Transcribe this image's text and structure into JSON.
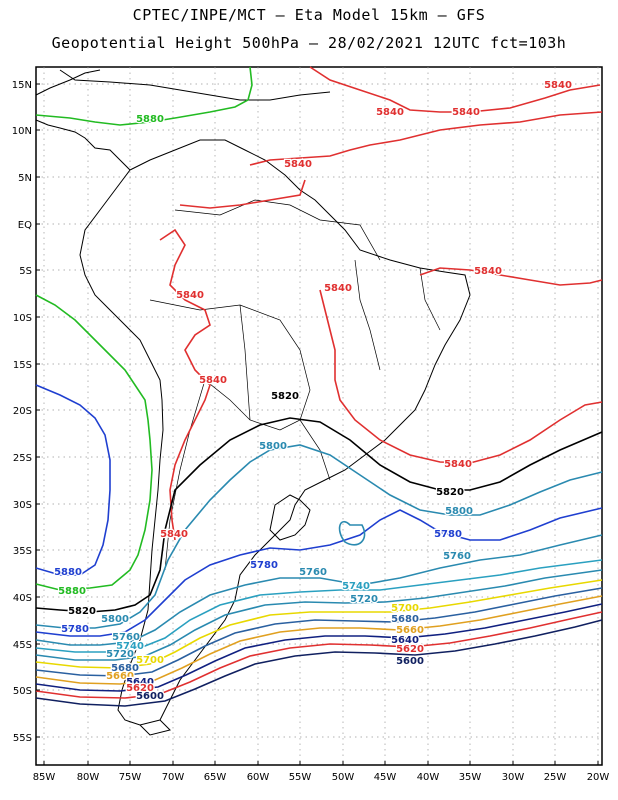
{
  "header": {
    "line1": "CPTEC/INPE/MCT  –  Eta Model 15km  –  GFS",
    "line2": "Geopotential Height 500hPa  –  28/02/2021 12UTC fct=103h"
  },
  "axes": {
    "lat_labels": [
      "15N",
      "10N",
      "5N",
      "EQ",
      "5S",
      "10S",
      "15S",
      "20S",
      "25S",
      "30S",
      "35S",
      "40S",
      "45S",
      "50S",
      "55S"
    ],
    "lon_labels": [
      "85W",
      "80W",
      "75W",
      "70W",
      "65W",
      "60W",
      "55W",
      "50W",
      "45W",
      "40W",
      "35W",
      "30W",
      "25W",
      "20W"
    ]
  },
  "contour_labels": [
    {
      "text": "5880",
      "color": "#22bb22"
    },
    {
      "text": "5840",
      "color": "#e03030"
    },
    {
      "text": "5840",
      "color": "#e03030"
    },
    {
      "text": "5840",
      "color": "#e03030"
    },
    {
      "text": "5840",
      "color": "#e03030"
    },
    {
      "text": "5840",
      "color": "#e03030"
    },
    {
      "text": "5840",
      "color": "#e03030"
    },
    {
      "text": "5840",
      "color": "#e03030"
    },
    {
      "text": "5840",
      "color": "#e03030"
    },
    {
      "text": "5840",
      "color": "#e03030"
    },
    {
      "text": "5840",
      "color": "#e03030"
    },
    {
      "text": "5820",
      "color": "#000000"
    },
    {
      "text": "5820",
      "color": "#000000"
    },
    {
      "text": "5820",
      "color": "#000000"
    },
    {
      "text": "5800",
      "color": "#2a8ab0"
    },
    {
      "text": "5800",
      "color": "#2a8ab0"
    },
    {
      "text": "5800",
      "color": "#2a8ab0"
    },
    {
      "text": "5780",
      "color": "#1f3fd0"
    },
    {
      "text": "5780",
      "color": "#1f3fd0"
    },
    {
      "text": "5780",
      "color": "#1f3fd0"
    },
    {
      "text": "5760",
      "color": "#2a8ab0"
    },
    {
      "text": "5760",
      "color": "#2a8ab0"
    },
    {
      "text": "5760",
      "color": "#2a8ab0"
    },
    {
      "text": "5740",
      "color": "#2aa0c0"
    },
    {
      "text": "5740",
      "color": "#2aa0c0"
    },
    {
      "text": "5720",
      "color": "#2a8ab0"
    },
    {
      "text": "5720",
      "color": "#2a8ab0"
    },
    {
      "text": "5700",
      "color": "#e8d800"
    },
    {
      "text": "5700",
      "color": "#e8d800"
    },
    {
      "text": "5680",
      "color": "#2a60a0"
    },
    {
      "text": "5680",
      "color": "#2a60a0"
    },
    {
      "text": "5660",
      "color": "#e0a020"
    },
    {
      "text": "5660",
      "color": "#e0a020"
    },
    {
      "text": "5640",
      "color": "#102080"
    },
    {
      "text": "5640",
      "color": "#102080"
    },
    {
      "text": "5620",
      "color": "#e03030"
    },
    {
      "text": "5620",
      "color": "#e03030"
    },
    {
      "text": "5600",
      "color": "#102060"
    },
    {
      "text": "5600",
      "color": "#102060"
    },
    {
      "text": "5880",
      "color": "#22bb22"
    },
    {
      "text": "5880",
      "color": "#1f3fd0"
    }
  ]
}
